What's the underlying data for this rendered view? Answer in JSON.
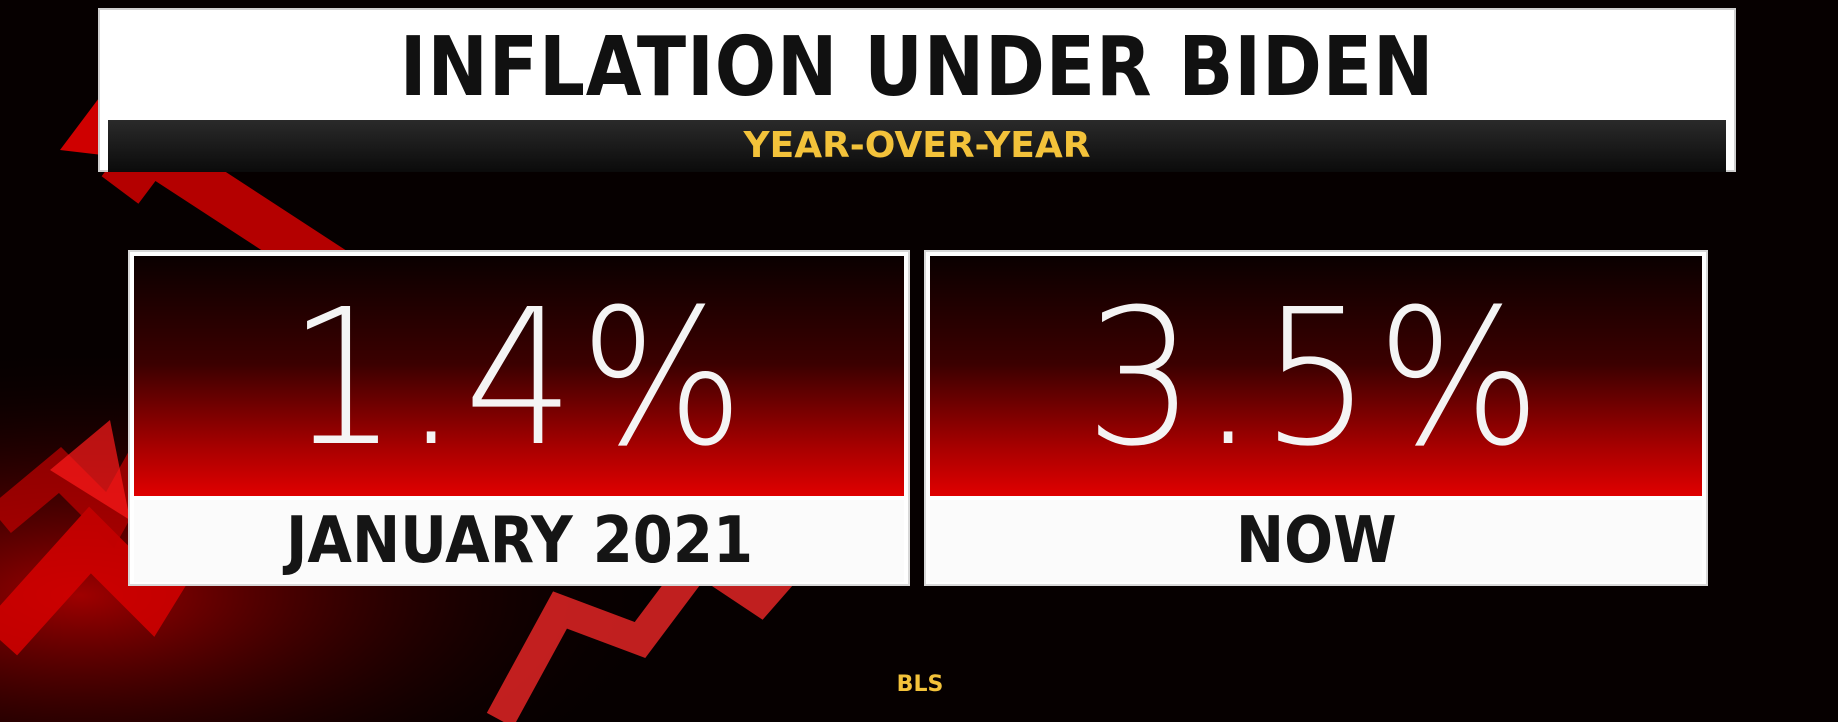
{
  "header": {
    "title": "INFLATION UNDER BIDEN",
    "subtitle": "YEAR-OVER-YEAR"
  },
  "panels": [
    {
      "value": "1.4%",
      "label": "JANUARY 2021"
    },
    {
      "value": "3.5%",
      "label": "NOW"
    }
  ],
  "source": "BLS",
  "colors": {
    "accent_red": "#e00000",
    "subtitle_gold": "#f3c23a",
    "background": "#060000"
  },
  "icons": [
    "rising-arrow-graphic"
  ]
}
